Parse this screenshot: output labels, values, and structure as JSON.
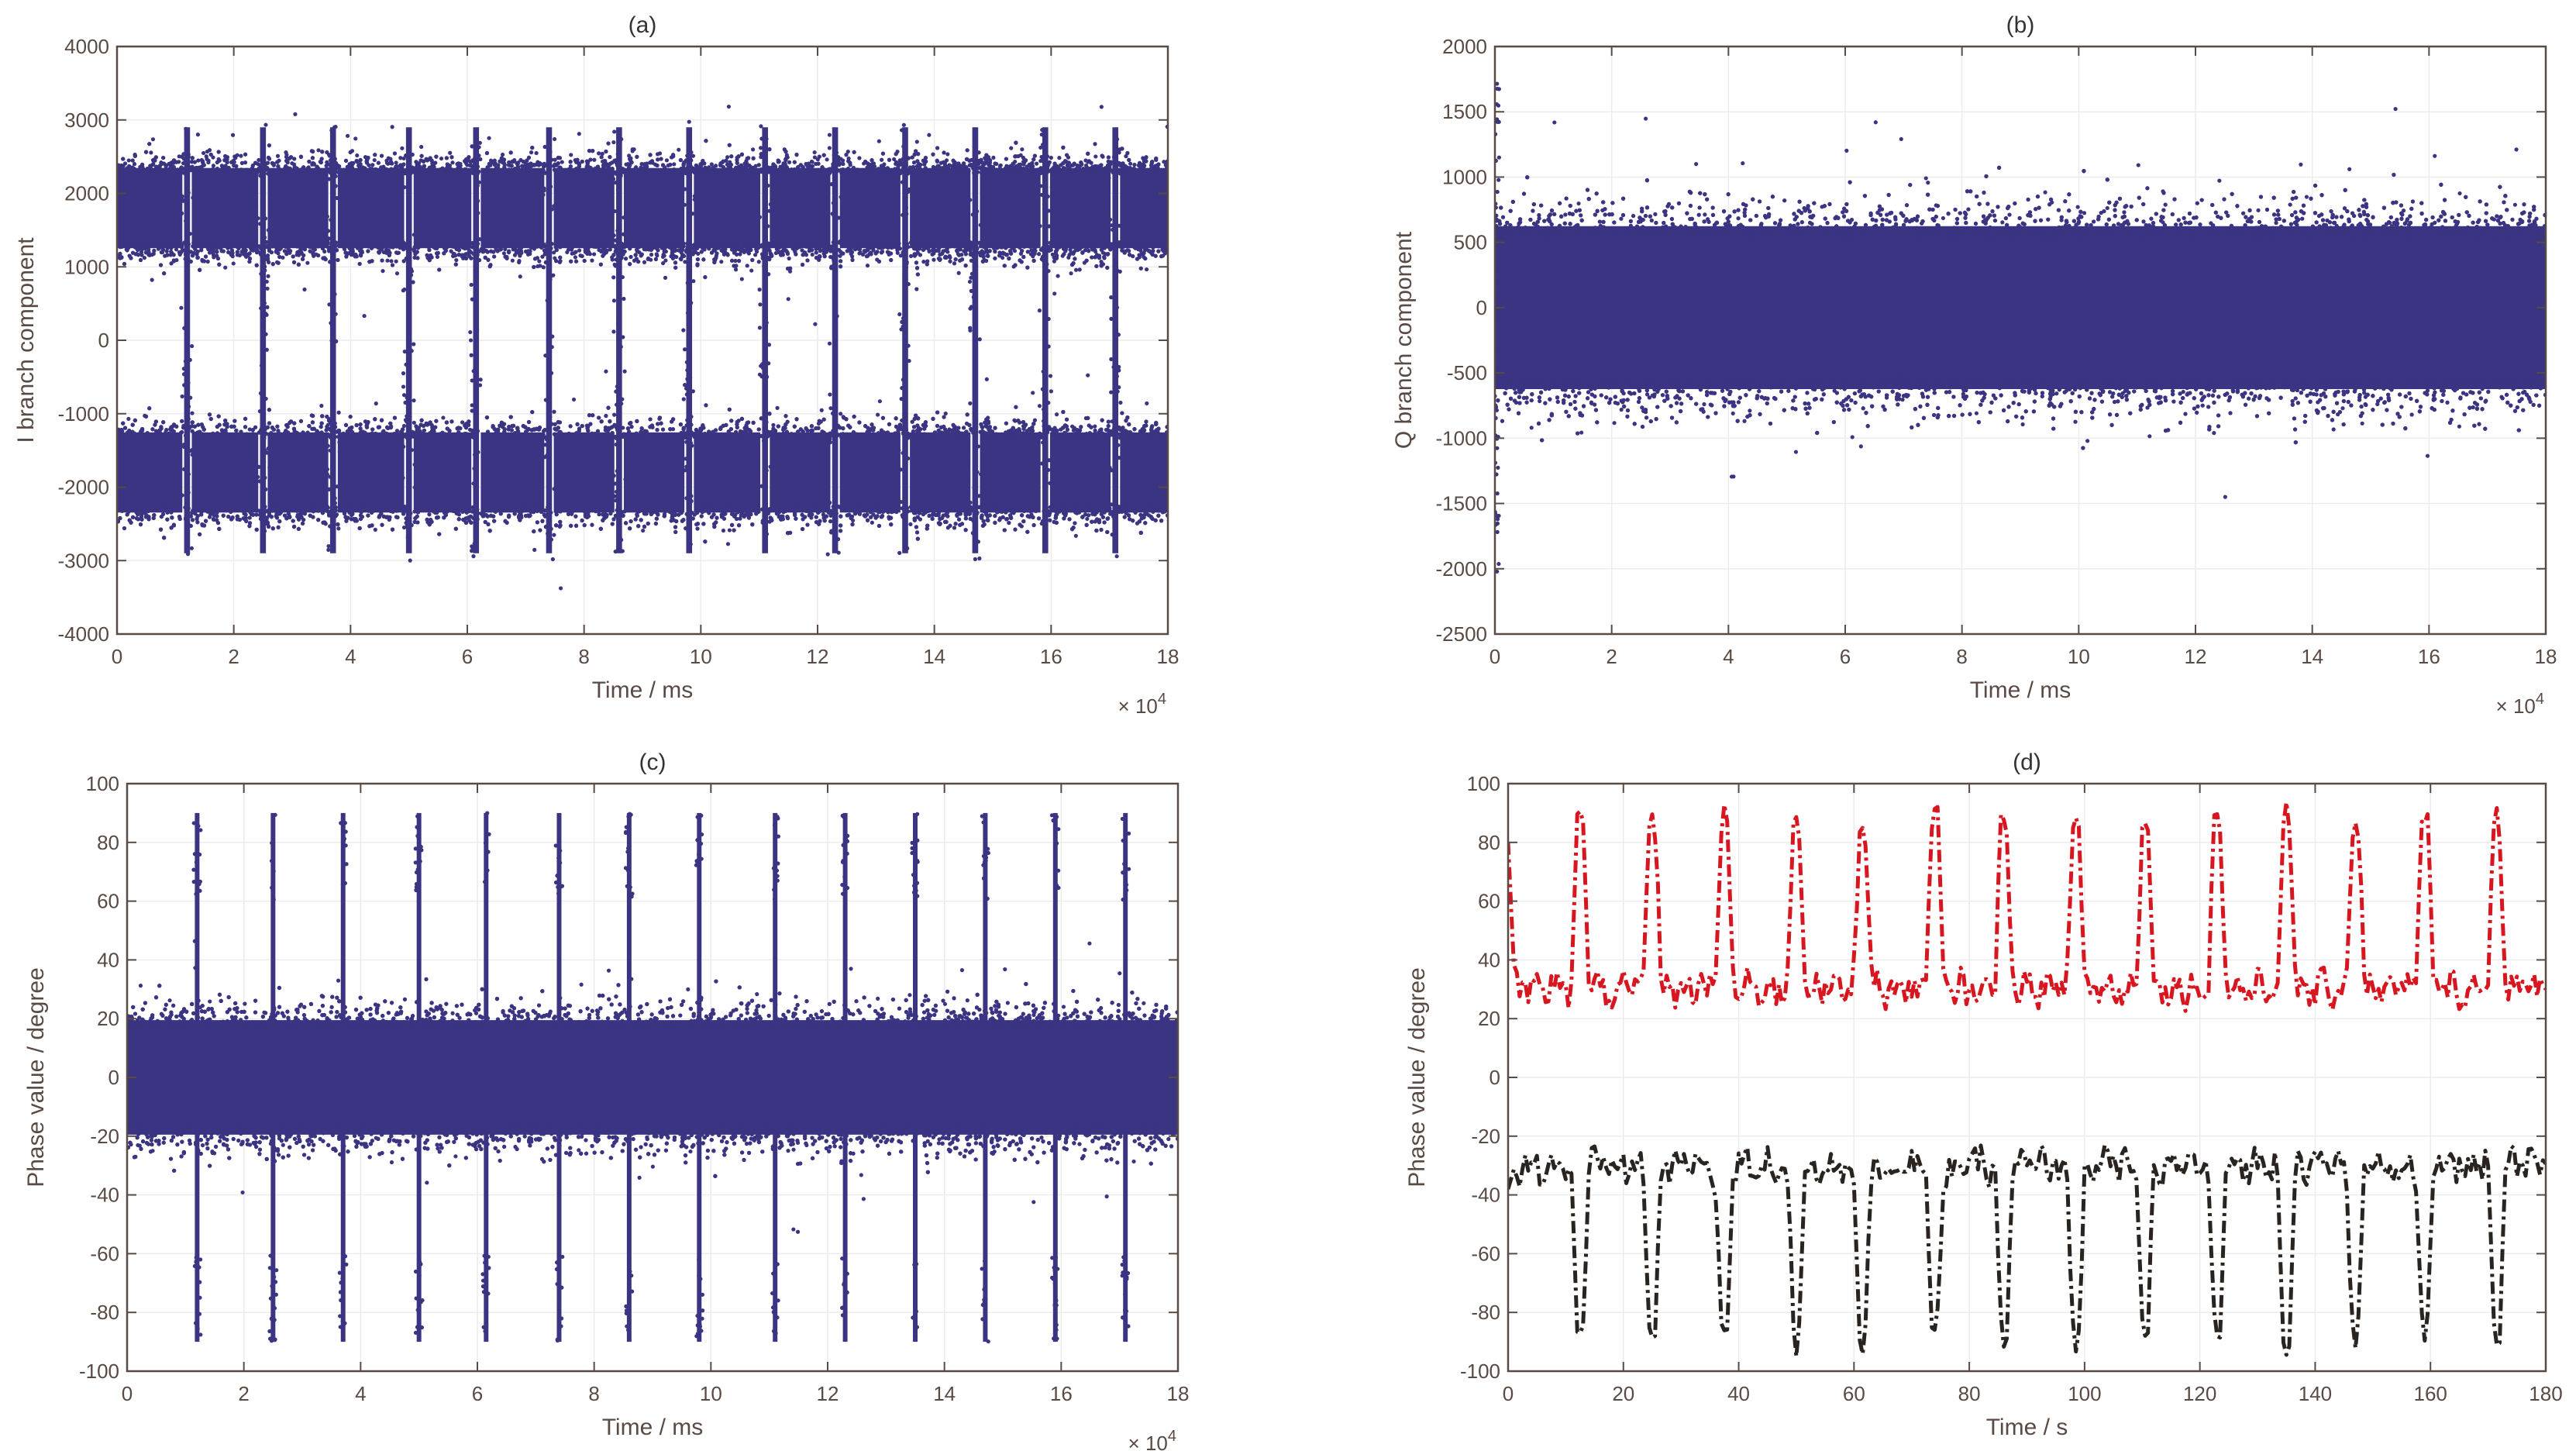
{
  "figure": {
    "colors": {
      "scatter": "#3a3482",
      "red_line": "#d7161f",
      "black_line": "#2a2420",
      "axis": "#594a43",
      "grid": "#ececec"
    }
  },
  "chart_data": [
    {
      "id": "a",
      "type": "scatter",
      "title": "(a)",
      "xlabel": "Time / ms",
      "ylabel": "I branch component",
      "xlim": [
        0,
        180000
      ],
      "ylim": [
        -4000,
        4000
      ],
      "xticks": [
        0,
        20000,
        40000,
        60000,
        80000,
        100000,
        120000,
        140000,
        160000,
        180000
      ],
      "xtick_labels": [
        "0",
        "2",
        "4",
        "6",
        "8",
        "10",
        "12",
        "14",
        "16",
        "18"
      ],
      "x_exponent_label": "× 10^4",
      "yticks": [
        -4000,
        -3000,
        -2000,
        -1000,
        0,
        1000,
        2000,
        3000,
        4000
      ],
      "ytick_labels": [
        "-4000",
        "-3000",
        "-2000",
        "-1000",
        "0",
        "1000",
        "2000",
        "3000",
        "4000"
      ],
      "description": "Two dense bands around +1800 and -1800 (spread roughly ±700), with 14 vertical transition columns",
      "bands": [
        {
          "center": 1800,
          "spread": 700
        },
        {
          "center": -1800,
          "spread": 700
        }
      ],
      "transition_times": [
        12000,
        25000,
        37000,
        50000,
        61500,
        74000,
        86000,
        98000,
        111000,
        123000,
        135000,
        147000,
        159000,
        171000
      ],
      "series": [
        {
          "name": "I branch",
          "color": "#3a3482"
        }
      ]
    },
    {
      "id": "b",
      "type": "scatter",
      "title": "(b)",
      "xlabel": "Time / ms",
      "ylabel": "Q branch component",
      "xlim": [
        0,
        180000
      ],
      "ylim": [
        -2500,
        2000
      ],
      "xticks": [
        0,
        20000,
        40000,
        60000,
        80000,
        100000,
        120000,
        140000,
        160000,
        180000
      ],
      "xtick_labels": [
        "0",
        "2",
        "4",
        "6",
        "8",
        "10",
        "12",
        "14",
        "16",
        "18"
      ],
      "x_exponent_label": "× 10^4",
      "yticks": [
        -2500,
        -2000,
        -1500,
        -1000,
        -500,
        0,
        500,
        1000,
        1500,
        2000
      ],
      "ytick_labels": [
        "-2500",
        "-2000",
        "-1500",
        "-1000",
        "-500",
        "0",
        "500",
        "1000",
        "1500",
        "2000"
      ],
      "description": "Single dense band centered at 0 spanning roughly -800 to 800 with sparse outliers",
      "bands": [
        {
          "center": 0,
          "spread": 800
        }
      ],
      "series": [
        {
          "name": "Q branch",
          "color": "#3a3482"
        }
      ]
    },
    {
      "id": "c",
      "type": "scatter",
      "title": "(c)",
      "xlabel": "Time / ms",
      "ylabel": "Phase value / degree",
      "xlim": [
        0,
        180000
      ],
      "ylim": [
        -100,
        100
      ],
      "xticks": [
        0,
        20000,
        40000,
        60000,
        80000,
        100000,
        120000,
        140000,
        160000,
        180000
      ],
      "xtick_labels": [
        "0",
        "2",
        "4",
        "6",
        "8",
        "10",
        "12",
        "14",
        "16",
        "18"
      ],
      "x_exponent_label": "× 10^4",
      "yticks": [
        -100,
        -80,
        -60,
        -40,
        -20,
        0,
        20,
        40,
        60,
        80,
        100
      ],
      "ytick_labels": [
        "-100",
        "-80",
        "-60",
        "-40",
        "-20",
        "0",
        "20",
        "40",
        "60",
        "80",
        "100"
      ],
      "description": "Dense band around 0 degrees (spread roughly ±25) with 14 vertical spikes reaching ±90 degrees",
      "bands": [
        {
          "center": 0,
          "spread": 25
        }
      ],
      "transition_times": [
        12000,
        25000,
        37000,
        50000,
        61500,
        74000,
        86000,
        98000,
        111000,
        123000,
        135000,
        147000,
        159000,
        171000
      ],
      "series": [
        {
          "name": "Phase",
          "color": "#3a3482"
        }
      ]
    },
    {
      "id": "d",
      "type": "line",
      "title": "(d)",
      "xlabel": "Time / s",
      "ylabel": "Phase value / degree",
      "xlim": [
        0,
        180
      ],
      "ylim": [
        -100,
        100
      ],
      "xticks": [
        0,
        20,
        40,
        60,
        80,
        100,
        120,
        140,
        160,
        180
      ],
      "xtick_labels": [
        "0",
        "20",
        "40",
        "60",
        "80",
        "100",
        "120",
        "140",
        "160",
        "180"
      ],
      "yticks": [
        -100,
        -80,
        -60,
        -40,
        -20,
        0,
        20,
        40,
        60,
        80,
        100
      ],
      "ytick_labels": [
        "-100",
        "-80",
        "-60",
        "-40",
        "-20",
        "0",
        "20",
        "40",
        "60",
        "80",
        "100"
      ],
      "spike_times": [
        12.5,
        25,
        37.5,
        50,
        61.5,
        74,
        86,
        98.5,
        110.5,
        123,
        135,
        147,
        159,
        171.5
      ],
      "series": [
        {
          "name": "upper phase",
          "color": "#d7161f",
          "style": "dash-dot",
          "baseline": 30,
          "peak": 90
        },
        {
          "name": "lower phase",
          "color": "#2a2420",
          "style": "dash-dot",
          "baseline": -30,
          "peak": -90
        }
      ]
    }
  ]
}
